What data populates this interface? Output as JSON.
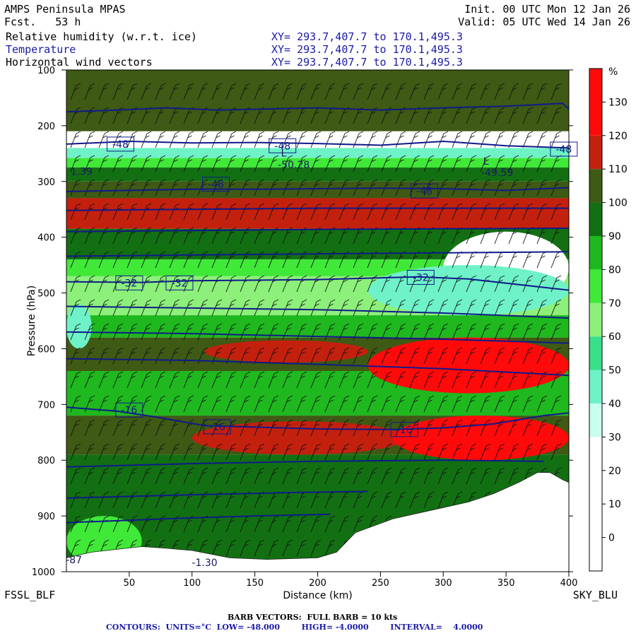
{
  "header": {
    "model": "AMPS Peninsula MPAS",
    "fcst": "Fcst.   53 h",
    "init": "Init. 00 UTC Mon 12 Jan 26",
    "valid": "Valid: 05 UTC Wed 14 Jan 26",
    "fields": [
      {
        "name": "Relative humidity (w.r.t. ice)",
        "xy": "XY= 293.7,407.7 to 170.1,495.3"
      },
      {
        "name": "Temperature",
        "xy": "XY= 293.7,407.7 to 170.1,495.3"
      },
      {
        "name": "Horizontal wind vectors",
        "xy": "XY= 293.7,407.7 to 170.1,495.3"
      }
    ]
  },
  "endpoints": {
    "left": "FSSL_BLF",
    "right": "SKY_BLU"
  },
  "footer": {
    "barb": "BARB VECTORS:  FULL BARB = 10 kts",
    "contours": "CONTOURS:  UNITS=°C  LOW= -48.000        HIGH= -4.0000        INTERVAL=    4.0000"
  },
  "colors": {
    "temperature_contour": "#101a8a",
    "barb": "#111111",
    "terrain": "#ffffff"
  },
  "chart_data": {
    "type": "heatmap",
    "title": "",
    "xlabel": "Distance (km)",
    "ylabel": "Pressure (hPa)",
    "xlim": [
      0,
      400
    ],
    "ylim": [
      1000,
      100
    ],
    "xticks": [
      50,
      100,
      150,
      200,
      250,
      300,
      350,
      400
    ],
    "yticks": [
      100,
      200,
      300,
      400,
      500,
      600,
      700,
      800,
      900,
      1000
    ],
    "colorbar": {
      "unit": "%",
      "ticks": [
        0,
        10,
        20,
        30,
        40,
        50,
        60,
        70,
        80,
        90,
        100,
        110,
        120,
        130
      ],
      "bins": [
        {
          "lo": -10,
          "hi": 0,
          "color": "#ffffff"
        },
        {
          "lo": 0,
          "hi": 10,
          "color": "#ffffff"
        },
        {
          "lo": 10,
          "hi": 20,
          "color": "#ffffff"
        },
        {
          "lo": 20,
          "hi": 30,
          "color": "#ffffff"
        },
        {
          "lo": 30,
          "hi": 40,
          "color": "#c8ffee"
        },
        {
          "lo": 40,
          "hi": 50,
          "color": "#6ff2c8"
        },
        {
          "lo": 50,
          "hi": 60,
          "color": "#38e08a"
        },
        {
          "lo": 60,
          "hi": 70,
          "color": "#8cf07a"
        },
        {
          "lo": 70,
          "hi": 80,
          "color": "#40e838"
        },
        {
          "lo": 80,
          "hi": 90,
          "color": "#1fb81f"
        },
        {
          "lo": 90,
          "hi": 100,
          "color": "#127012"
        },
        {
          "lo": 100,
          "hi": 110,
          "color": "#3e5a14"
        },
        {
          "lo": 110,
          "hi": 120,
          "color": "#c4200e"
        },
        {
          "lo": 120,
          "hi": 140,
          "color": "#ff0a0a"
        }
      ]
    },
    "rh_bands": [
      {
        "p_top": 100,
        "p_bot": 210,
        "value": 100
      },
      {
        "p_top": 210,
        "p_bot": 240,
        "value": 10
      },
      {
        "p_top": 240,
        "p_bot": 258,
        "value": 45
      },
      {
        "p_top": 258,
        "p_bot": 275,
        "value": 75
      },
      {
        "p_top": 275,
        "p_bot": 300,
        "value": 95
      },
      {
        "p_top": 300,
        "p_bot": 330,
        "value": 105
      },
      {
        "p_top": 330,
        "p_bot": 385,
        "value": 112
      },
      {
        "p_top": 385,
        "p_bot": 440,
        "value": 95
      },
      {
        "p_top": 440,
        "p_bot": 470,
        "value": 75
      },
      {
        "p_top": 470,
        "p_bot": 540,
        "value": 65
      },
      {
        "p_top": 540,
        "p_bot": 580,
        "value": 85
      },
      {
        "p_top": 580,
        "p_bot": 640,
        "value": 105
      },
      {
        "p_top": 640,
        "p_bot": 720,
        "value": 85
      },
      {
        "p_top": 720,
        "p_bot": 790,
        "value": 105
      },
      {
        "p_top": 790,
        "p_bot": 1000,
        "value": 95
      }
    ],
    "rh_patches": [
      {
        "x": [
          0,
          140
        ],
        "p": [
          330,
          385
        ],
        "value": 115
      },
      {
        "x": [
          170,
          260
        ],
        "p": [
          330,
          385
        ],
        "value": 115
      },
      {
        "x": [
          300,
          400
        ],
        "p": [
          390,
          520
        ],
        "value": 15
      },
      {
        "x": [
          240,
          400
        ],
        "p": [
          450,
          540
        ],
        "value": 40
      },
      {
        "x": [
          0,
          20
        ],
        "p": [
          520,
          600
        ],
        "value": 45
      },
      {
        "x": [
          110,
          240
        ],
        "p": [
          585,
          625
        ],
        "value": 115
      },
      {
        "x": [
          240,
          400
        ],
        "p": [
          580,
          680
        ],
        "value": 125
      },
      {
        "x": [
          100,
          270
        ],
        "p": [
          730,
          790
        ],
        "value": 115
      },
      {
        "x": [
          260,
          400
        ],
        "p": [
          720,
          800
        ],
        "value": 120
      },
      {
        "x": [
          0,
          60
        ],
        "p": [
          900,
          990
        ],
        "value": 70
      }
    ],
    "temperature_contours": [
      {
        "level": -48,
        "points": [
          [
            0,
            175
          ],
          [
            40,
            172
          ],
          [
            80,
            168
          ],
          [
            120,
            172
          ],
          [
            160,
            170
          ],
          [
            200,
            168
          ],
          [
            250,
            172
          ],
          [
            300,
            168
          ],
          [
            350,
            165
          ],
          [
            395,
            160
          ],
          [
            400,
            170
          ]
        ]
      },
      {
        "level": -48,
        "points": [
          [
            0,
            233
          ],
          [
            50,
            228
          ],
          [
            100,
            231
          ],
          [
            150,
            230
          ],
          [
            200,
            232
          ],
          [
            250,
            235
          ],
          [
            300,
            228
          ],
          [
            350,
            236
          ],
          [
            400,
            240
          ]
        ]
      },
      {
        "level": -48,
        "points": [
          [
            0,
            318
          ],
          [
            50,
            316
          ],
          [
            100,
            314
          ],
          [
            150,
            314
          ],
          [
            200,
            313
          ],
          [
            250,
            312
          ],
          [
            300,
            313
          ],
          [
            350,
            316
          ],
          [
            400,
            311
          ]
        ]
      },
      {
        "level": -44,
        "points": [
          [
            0,
            352
          ],
          [
            100,
            350
          ],
          [
            200,
            348
          ],
          [
            300,
            348
          ],
          [
            400,
            348
          ]
        ]
      },
      {
        "level": -40,
        "points": [
          [
            0,
            390
          ],
          [
            100,
            388
          ],
          [
            200,
            386
          ],
          [
            300,
            385
          ],
          [
            400,
            384
          ]
        ]
      },
      {
        "level": -36,
        "points": [
          [
            0,
            434
          ],
          [
            100,
            432
          ],
          [
            200,
            430
          ],
          [
            300,
            428
          ],
          [
            400,
            426
          ]
        ]
      },
      {
        "level": -32,
        "points": [
          [
            0,
            480
          ],
          [
            60,
            481
          ],
          [
            100,
            478
          ],
          [
            200,
            476
          ],
          [
            280,
            471
          ],
          [
            320,
            475
          ],
          [
            400,
            495
          ]
        ]
      },
      {
        "level": -28,
        "points": [
          [
            0,
            524
          ],
          [
            100,
            527
          ],
          [
            200,
            530
          ],
          [
            300,
            536
          ],
          [
            400,
            545
          ]
        ]
      },
      {
        "level": -24,
        "points": [
          [
            0,
            570
          ],
          [
            100,
            573
          ],
          [
            200,
            578
          ],
          [
            300,
            583
          ],
          [
            400,
            590
          ]
        ]
      },
      {
        "level": -20,
        "points": [
          [
            0,
            618
          ],
          [
            100,
            621
          ],
          [
            200,
            628
          ],
          [
            300,
            636
          ],
          [
            400,
            648
          ]
        ]
      },
      {
        "level": -16,
        "points": [
          [
            0,
            705
          ],
          [
            40,
            712
          ],
          [
            70,
            722
          ],
          [
            110,
            738
          ],
          [
            200,
            744
          ],
          [
            260,
            745
          ],
          [
            300,
            742
          ],
          [
            340,
            735
          ],
          [
            380,
            720
          ],
          [
            400,
            715
          ]
        ]
      },
      {
        "level": -12,
        "points": [
          [
            0,
            812
          ],
          [
            100,
            806
          ],
          [
            200,
            802
          ],
          [
            300,
            800
          ],
          [
            380,
            802
          ]
        ]
      },
      {
        "level": -8,
        "points": [
          [
            0,
            868
          ],
          [
            100,
            862
          ],
          [
            180,
            858
          ],
          [
            240,
            856
          ]
        ]
      },
      {
        "level": -4,
        "points": [
          [
            0,
            912
          ],
          [
            80,
            905
          ],
          [
            150,
            900
          ],
          [
            210,
            897
          ]
        ]
      }
    ],
    "contour_labels": [
      {
        "text": "-48",
        "x": 43,
        "p": 233
      },
      {
        "text": "-48",
        "x": 172,
        "p": 236
      },
      {
        "text": "-48",
        "x": 396,
        "p": 242
      },
      {
        "text": "-48",
        "x": 119,
        "p": 305
      },
      {
        "text": "-48",
        "x": 285,
        "p": 317
      },
      {
        "text": "-32",
        "x": 50,
        "p": 482
      },
      {
        "text": "-32",
        "x": 90,
        "p": 482
      },
      {
        "text": "-32",
        "x": 282,
        "p": 472
      },
      {
        "text": "-16",
        "x": 50,
        "p": 710
      },
      {
        "text": "-16",
        "x": 120,
        "p": 740
      },
      {
        "text": "-16",
        "x": 269,
        "p": 745
      }
    ],
    "annotations": [
      {
        "text": "L",
        "x": 173,
        "p": 255
      },
      {
        "text": "-50.28",
        "x": 181,
        "p": 276
      },
      {
        "text": "L",
        "x": 334,
        "p": 270
      },
      {
        "text": "-49.59",
        "x": 343,
        "p": 290
      },
      {
        "text": "1.39",
        "x": 12,
        "p": 288
      },
      {
        "text": "-87",
        "x": 6,
        "p": 985
      },
      {
        "text": "-1.30",
        "x": 110,
        "p": 990
      }
    ],
    "terrain": [
      [
        0,
        975
      ],
      [
        20,
        965
      ],
      [
        40,
        960
      ],
      [
        60,
        955
      ],
      [
        80,
        958
      ],
      [
        100,
        962
      ],
      [
        130,
        975
      ],
      [
        160,
        978
      ],
      [
        200,
        975
      ],
      [
        215,
        965
      ],
      [
        230,
        930
      ],
      [
        260,
        905
      ],
      [
        280,
        895
      ],
      [
        300,
        885
      ],
      [
        320,
        875
      ],
      [
        340,
        860
      ],
      [
        360,
        840
      ],
      [
        375,
        822
      ],
      [
        385,
        822
      ],
      [
        395,
        835
      ],
      [
        400,
        840
      ]
    ]
  }
}
